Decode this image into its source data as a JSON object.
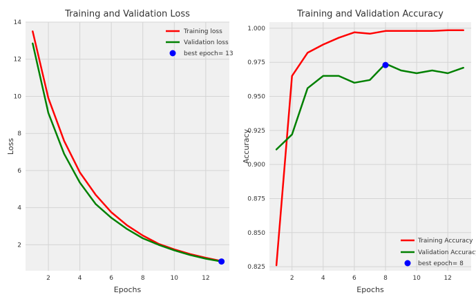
{
  "chart_data": [
    {
      "type": "line",
      "title": "Training and Validation Loss",
      "xlabel": "Epochs",
      "ylabel": "Loss",
      "xlim": [
        0.55,
        13.5
      ],
      "ylim": [
        0.6,
        14.0
      ],
      "xticks": [
        2,
        4,
        6,
        8,
        10,
        12
      ],
      "yticks": [
        2,
        4,
        6,
        8,
        10,
        12,
        14
      ],
      "grid": true,
      "background": "#f0f0f0",
      "legend_position": "top-right",
      "x": [
        1,
        2,
        3,
        4,
        5,
        6,
        7,
        8,
        9,
        10,
        11,
        12,
        13
      ],
      "series": [
        {
          "name": "Training loss",
          "color": "#ff0000",
          "values": [
            13.5,
            9.9,
            7.6,
            5.9,
            4.7,
            3.75,
            3.05,
            2.5,
            2.05,
            1.75,
            1.5,
            1.3,
            1.12
          ]
        },
        {
          "name": "Validation loss",
          "color": "#008000",
          "values": [
            12.85,
            9.1,
            6.9,
            5.35,
            4.2,
            3.45,
            2.85,
            2.35,
            2.0,
            1.7,
            1.45,
            1.25,
            1.1
          ]
        }
      ],
      "marker": {
        "name": "best epoch= 13",
        "color": "#0000ff",
        "x": 13,
        "y": 1.1
      }
    },
    {
      "type": "line",
      "title": "Training and Validation Accuracy",
      "xlabel": "Epochs",
      "ylabel": "Accuracy",
      "xlim": [
        0.55,
        13.5
      ],
      "ylim": [
        0.822,
        1.0045
      ],
      "xticks": [
        2,
        4,
        6,
        8,
        10,
        12
      ],
      "yticks": [
        0.825,
        0.85,
        0.875,
        0.9,
        0.925,
        0.95,
        0.975,
        1.0
      ],
      "ytick_labels": [
        "0.825",
        "0.850",
        "0.875",
        "0.900",
        "0.925",
        "0.950",
        "0.975",
        "1.000"
      ],
      "grid": true,
      "background": "#f0f0f0",
      "legend_position": "bottom-right",
      "x": [
        1,
        2,
        3,
        4,
        5,
        6,
        7,
        8,
        9,
        10,
        11,
        12,
        13
      ],
      "series": [
        {
          "name": "Training Accuracy",
          "color": "#ff0000",
          "values": [
            0.826,
            0.965,
            0.982,
            0.988,
            0.993,
            0.997,
            0.996,
            0.998,
            0.998,
            0.998,
            0.998,
            0.9985,
            0.9985
          ]
        },
        {
          "name": "Validation Accuracy",
          "color": "#008000",
          "values": [
            0.911,
            0.922,
            0.956,
            0.965,
            0.965,
            0.96,
            0.962,
            0.974,
            0.969,
            0.967,
            0.969,
            0.967,
            0.971
          ]
        }
      ],
      "marker": {
        "name": "best epoch= 8",
        "color": "#0000ff",
        "x": 8,
        "y": 0.973
      }
    }
  ]
}
